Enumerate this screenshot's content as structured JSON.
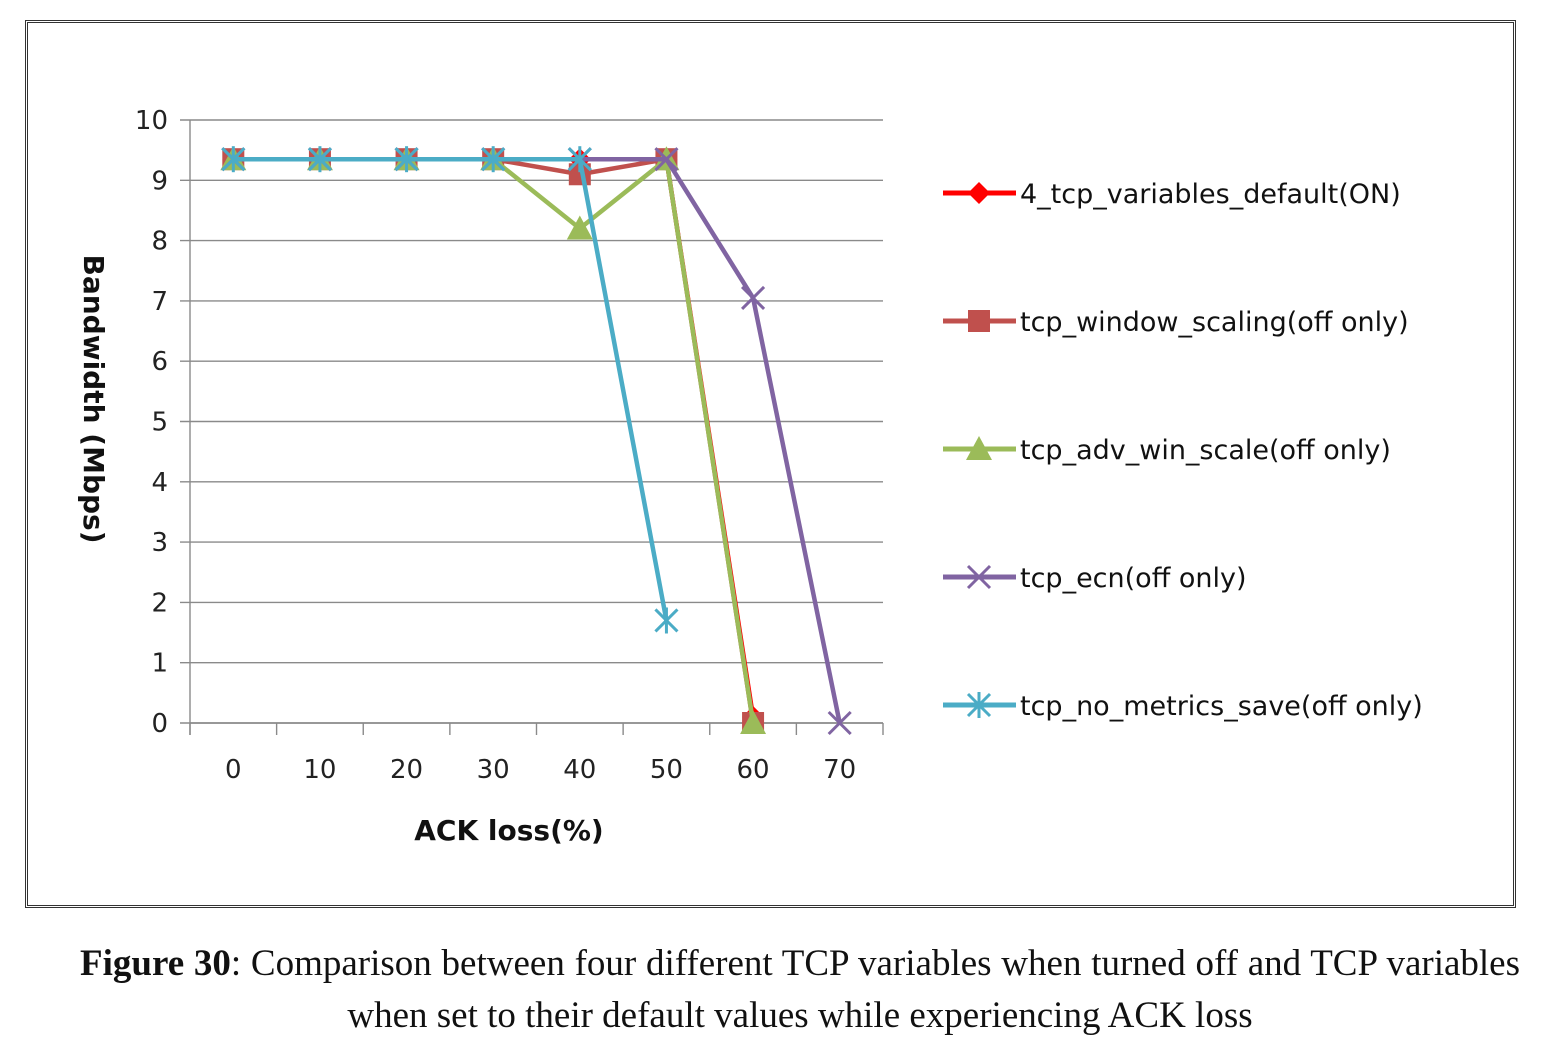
{
  "chart_data": {
    "type": "line",
    "title": "",
    "xlabel": "ACK loss(%)",
    "ylabel": "Bandwidth (Mbps)",
    "ylim": [
      0,
      10
    ],
    "yticks": [
      "0",
      "1",
      "2",
      "3",
      "4",
      "5",
      "6",
      "7",
      "8",
      "9",
      "10"
    ],
    "categories": [
      "0",
      "10",
      "20",
      "30",
      "40",
      "50",
      "60",
      "70"
    ],
    "grid": true,
    "legend_position": "right",
    "series": [
      {
        "name": "4_tcp_variables_default(ON)",
        "color": "#ff0000",
        "marker": "diamond",
        "values": [
          9.35,
          9.35,
          9.35,
          9.35,
          9.35,
          9.35,
          0.1,
          null
        ]
      },
      {
        "name": "tcp_window_scaling(off only)",
        "color": "#c0504d",
        "marker": "square",
        "values": [
          9.35,
          9.35,
          9.35,
          9.35,
          9.1,
          9.35,
          0.0,
          null
        ]
      },
      {
        "name": "tcp_adv_win_scale(off only)",
        "color": "#9bbb59",
        "marker": "triangle",
        "values": [
          9.35,
          9.35,
          9.35,
          9.35,
          8.2,
          9.35,
          0.0,
          null
        ]
      },
      {
        "name": "tcp_ecn(off only)",
        "color": "#8064a2",
        "marker": "x",
        "values": [
          9.35,
          9.35,
          9.35,
          9.35,
          9.35,
          9.35,
          7.05,
          0.0
        ]
      },
      {
        "name": "tcp_no_metrics_save(off only)",
        "color": "#4bacc6",
        "marker": "star",
        "values": [
          9.35,
          9.35,
          9.35,
          9.35,
          9.35,
          1.7,
          null,
          null
        ]
      }
    ]
  },
  "caption": {
    "label": "Figure 30",
    "text": ": Comparison between four different TCP variables when turned off and TCP variables when set to their default values while experiencing ACK loss"
  }
}
